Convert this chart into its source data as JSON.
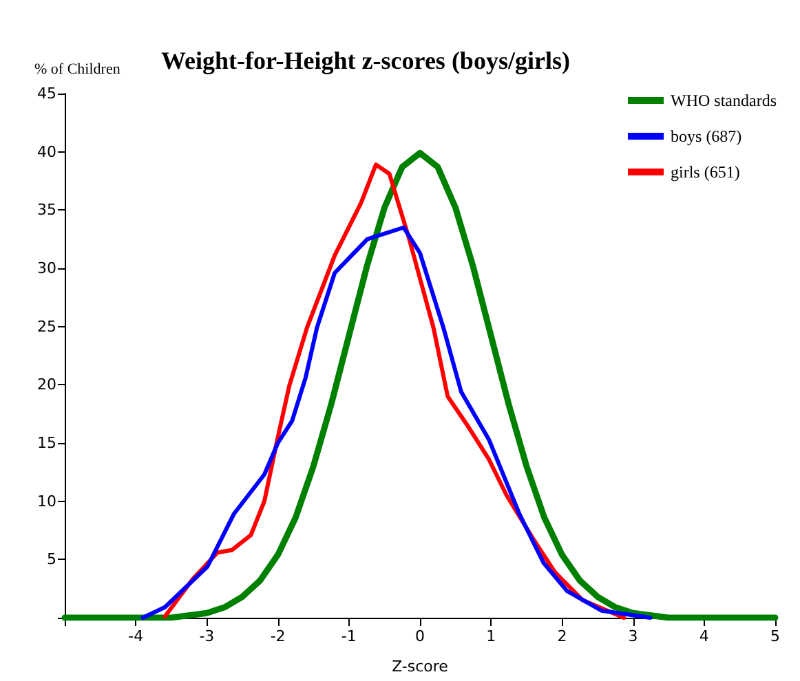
{
  "chart_data": {
    "type": "line",
    "title": "Weight-for-Height z-scores (boys/girls)",
    "ylabel": "% of Children",
    "xlabel": "Z-score",
    "xlim": [
      -5,
      5
    ],
    "xticks": [
      {
        "value": -5,
        "label": null
      },
      -4,
      -3,
      -2,
      -1,
      0,
      1,
      2,
      3,
      4,
      5
    ],
    "ylim": [
      0,
      45
    ],
    "yticks": [
      {
        "value": 0,
        "label": null
      },
      5,
      10,
      15,
      20,
      25,
      30,
      35,
      40,
      45
    ],
    "grid": false,
    "legend": "top right",
    "marker": "none",
    "line_style": "solid",
    "series": [
      {
        "name": "WHO standards",
        "color": "#008000",
        "x": [
          -5,
          -4,
          -3.5,
          -3,
          -2.75,
          -2.5,
          -2.25,
          -2,
          -1.75,
          -1.5,
          -1.25,
          -1,
          -0.75,
          -0.5,
          -0.25,
          0,
          0.25,
          0.5,
          0.75,
          1,
          1.25,
          1.5,
          1.75,
          2,
          2.25,
          2.5,
          2.75,
          3,
          3.5,
          4,
          5
        ],
        "values": [
          0,
          0,
          0,
          0.4,
          0.9,
          1.8,
          3.2,
          5.4,
          8.6,
          13,
          18.3,
          24.2,
          30.1,
          35.2,
          38.7,
          39.9,
          38.7,
          35.2,
          30.1,
          24.2,
          18.3,
          13,
          8.6,
          5.4,
          3.2,
          1.8,
          0.9,
          0.4,
          0,
          0,
          0
        ]
      },
      {
        "name": "boys (687)",
        "color": "#0000ff",
        "x": [
          -3.9,
          -3.59,
          -2.99,
          -2.62,
          -2.19,
          -2,
          -1.8,
          -1.61,
          -1.45,
          -1.2,
          -0.74,
          -0.23,
          0,
          0.33,
          0.58,
          0.97,
          1.4,
          1.74,
          2.07,
          2.56,
          3.24
        ],
        "values": [
          0,
          0.9,
          4.4,
          8.9,
          12.3,
          15,
          16.9,
          20.6,
          24.9,
          29.6,
          32.5,
          33.5,
          31.3,
          24.9,
          19.4,
          15.3,
          8.9,
          4.7,
          2.3,
          0.6,
          0
        ]
      },
      {
        "name": "girls (651)",
        "color": "#ff0000",
        "x": [
          -3.59,
          -3.2,
          -2.85,
          -2.65,
          -2.38,
          -2.19,
          -2,
          -1.84,
          -1.59,
          -1.2,
          -0.83,
          -0.62,
          -0.43,
          -0.16,
          0.1,
          0.19,
          0.39,
          0.68,
          0.97,
          1.22,
          1.59,
          1.9,
          2.29,
          2.87
        ],
        "values": [
          0.1,
          3.3,
          5.6,
          5.8,
          7.1,
          10,
          15.5,
          19.9,
          24.9,
          31.1,
          35.6,
          38.9,
          38.1,
          32.7,
          26.9,
          24.9,
          19,
          16.4,
          13.6,
          10.5,
          6.8,
          3.9,
          1.5,
          0
        ]
      }
    ]
  }
}
